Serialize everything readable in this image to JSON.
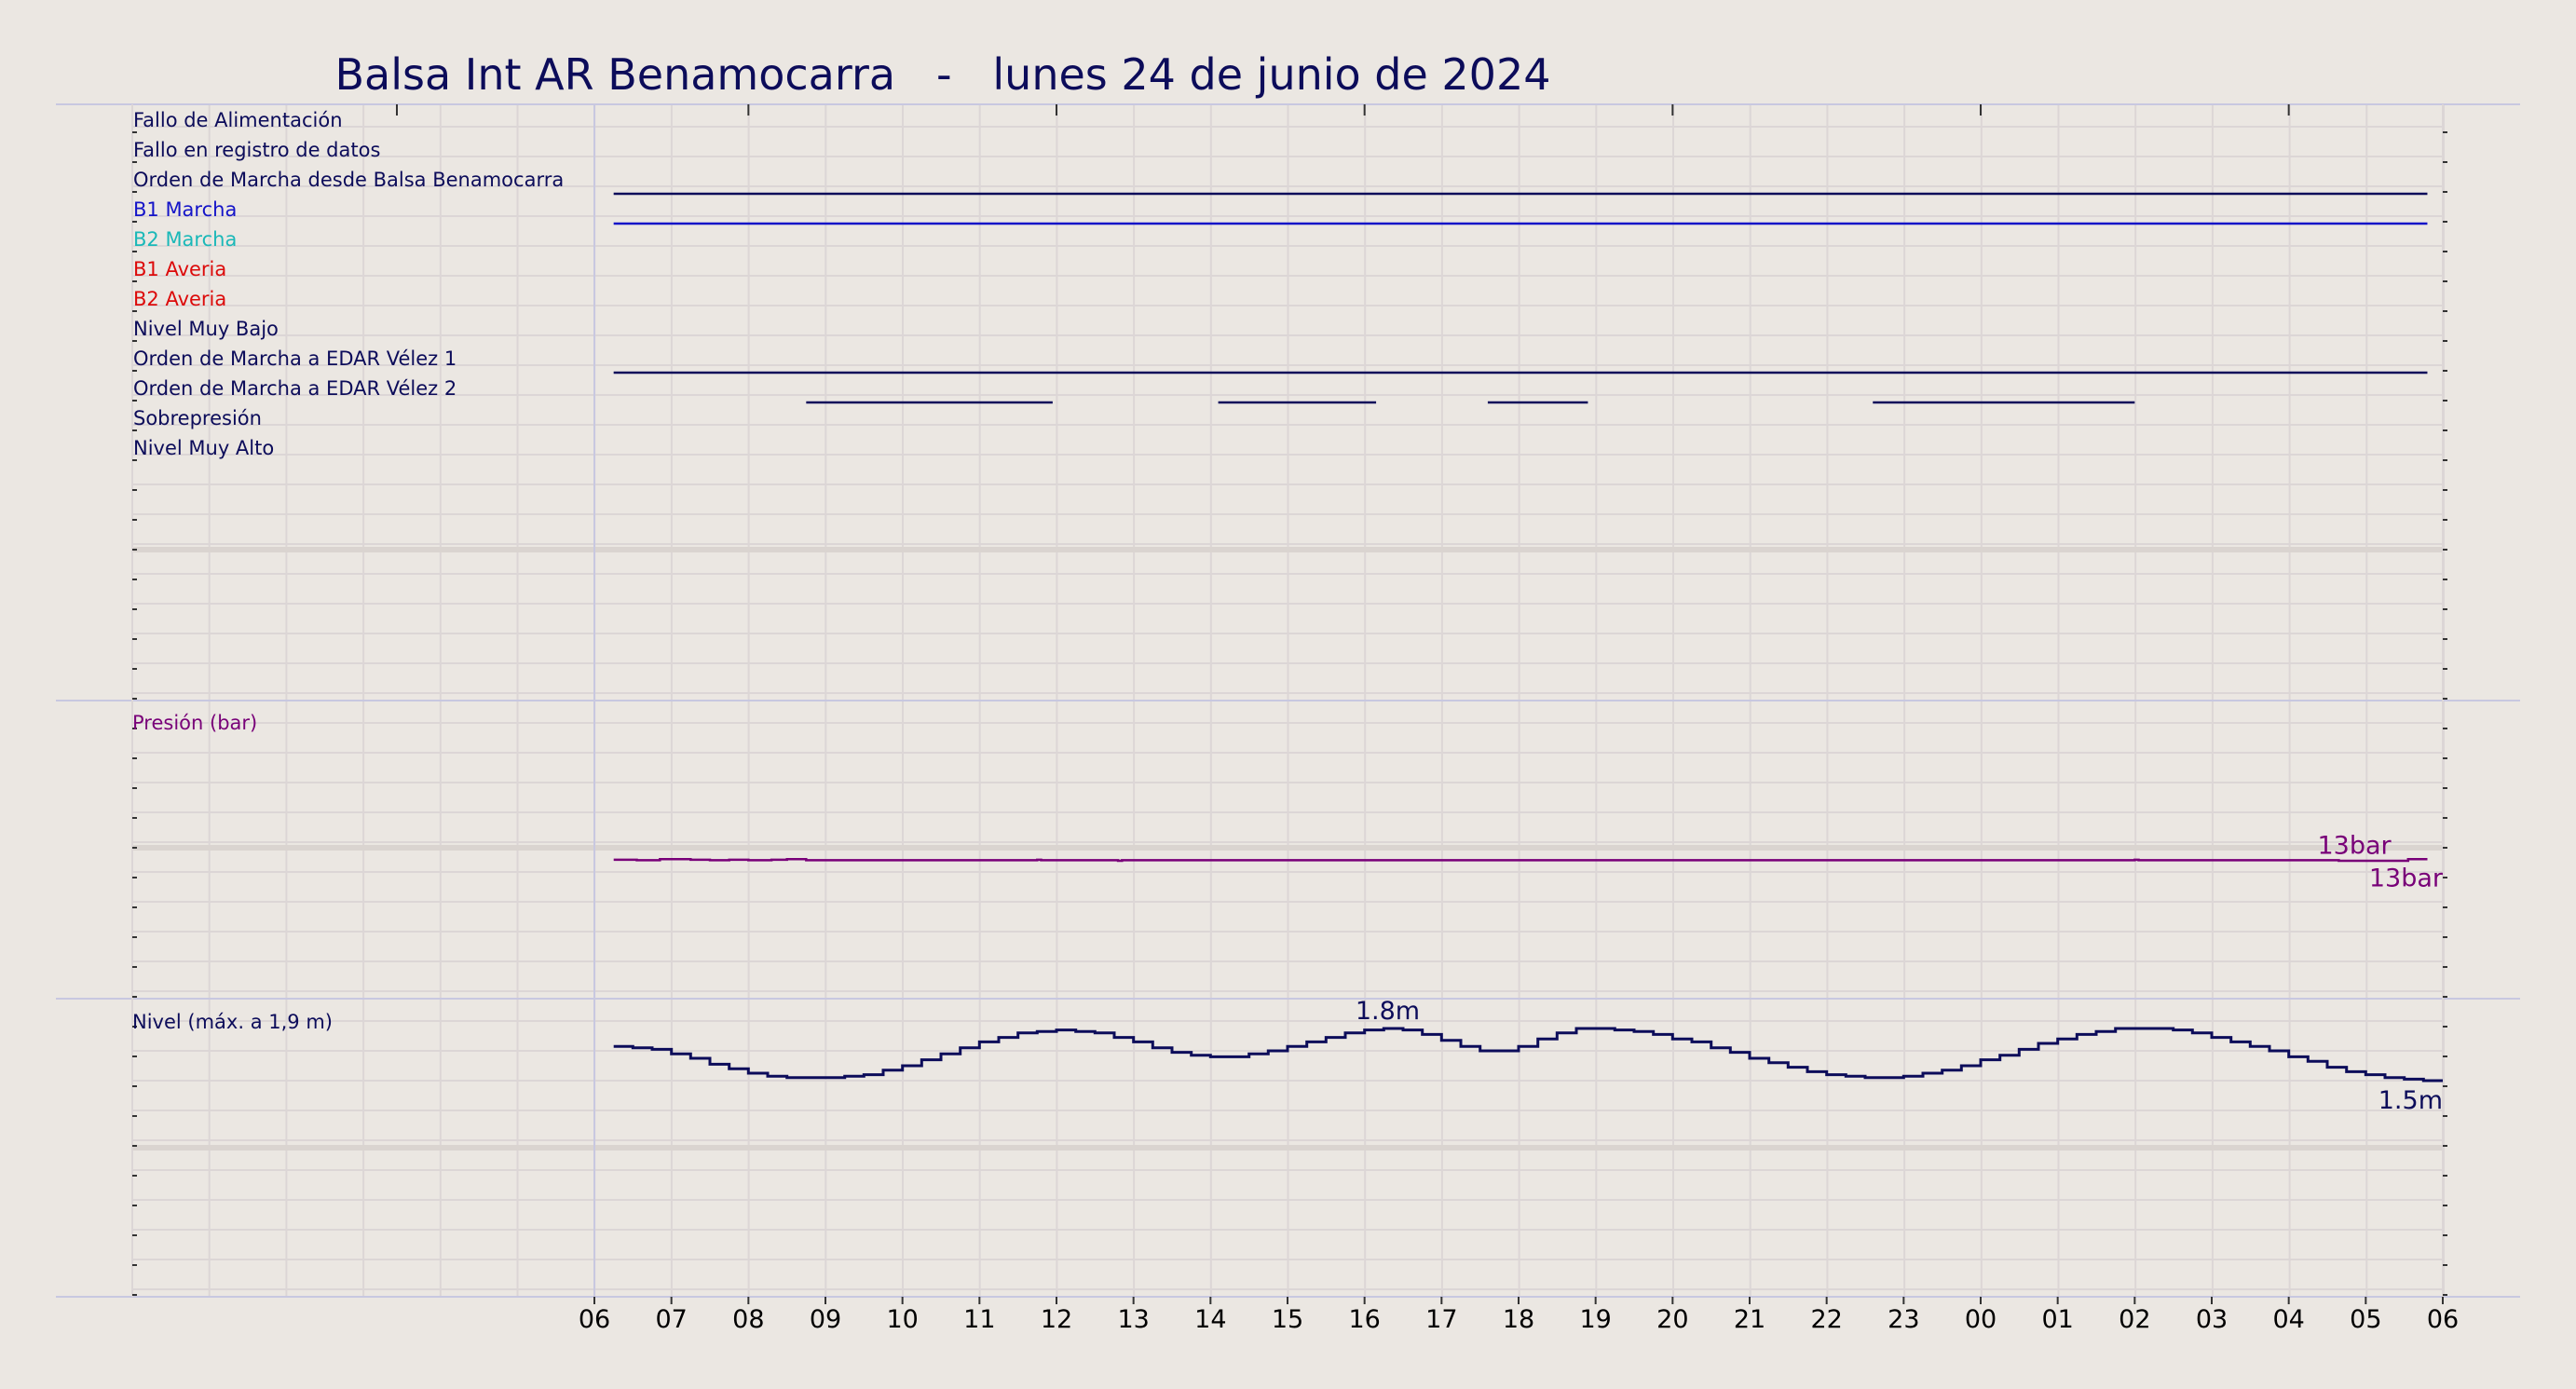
{
  "chart_data": {
    "type": "line",
    "title": "Balsa Int AR Benamocarra   -   lunes 24 de junio de 2024",
    "x_unit": "hour",
    "x_range": [
      "06:00",
      "06:00"
    ],
    "x_tick_labels": [
      "06",
      "07",
      "08",
      "09",
      "10",
      "11",
      "12",
      "13",
      "14",
      "15",
      "16",
      "17",
      "18",
      "19",
      "20",
      "21",
      "22",
      "23",
      "00",
      "01",
      "02",
      "03",
      "04",
      "05",
      "06"
    ],
    "grid": true,
    "colors": {
      "background": "#ebe7e2",
      "navy": "#0c0c5a",
      "blue": "#1414c8",
      "cyan": "#1ab8b8",
      "red": "#dc0a0a",
      "purple": "#780078",
      "grid": "#dcd6d6",
      "axis": "#c8c8e0"
    },
    "panels": {
      "signals": {
        "labels": [
          {
            "text": "Fallo de Alimentación",
            "color": "#0c0c5a"
          },
          {
            "text": "Fallo en registro de datos",
            "color": "#0c0c5a"
          },
          {
            "text": "Orden de Marcha desde Balsa Benamocarra",
            "color": "#0c0c5a"
          },
          {
            "text": "B1 Marcha",
            "color": "#1414c8"
          },
          {
            "text": "B2 Marcha",
            "color": "#1ab8b8"
          },
          {
            "text": "B1 Averia",
            "color": "#dc0a0a"
          },
          {
            "text": "B2 Averia",
            "color": "#dc0a0a"
          },
          {
            "text": "Nivel Muy Bajo",
            "color": "#0c0c5a"
          },
          {
            "text": "Orden de Marcha a EDAR Vélez 1",
            "color": "#0c0c5a"
          },
          {
            "text": "Orden de Marcha a EDAR Vélez 2",
            "color": "#0c0c5a"
          },
          {
            "text": "Sobrepresión",
            "color": "#0c0c5a"
          },
          {
            "text": "Nivel Muy Alto",
            "color": "#0c0c5a"
          }
        ],
        "active_periods": [
          {
            "row": 2,
            "color": "#0c0c5a",
            "intervals": [
              [
                6.25,
                29.8
              ]
            ]
          },
          {
            "row": 3,
            "color": "#1414c8",
            "intervals": [
              [
                6.25,
                29.8
              ]
            ]
          },
          {
            "row": 8,
            "color": "#0c0c5a",
            "intervals": [
              [
                6.25,
                29.8
              ]
            ]
          },
          {
            "row": 9,
            "color": "#0c0c5a",
            "intervals": [
              [
                8.75,
                11.95
              ],
              [
                14.1,
                16.15
              ],
              [
                17.6,
                18.9
              ],
              [
                22.6,
                26.0
              ]
            ]
          }
        ]
      },
      "pressure": {
        "label": "Presión (bar)",
        "color": "#780078",
        "ylim": [
          0,
          28
        ],
        "max_label": "13bar",
        "last_label": "13bar",
        "series": [
          [
            6.25,
            13.05
          ],
          [
            6.55,
            13.0
          ],
          [
            6.85,
            13.1
          ],
          [
            7.25,
            13.05
          ],
          [
            7.5,
            13.0
          ],
          [
            7.75,
            13.05
          ],
          [
            8.0,
            13.0
          ],
          [
            8.3,
            13.05
          ],
          [
            8.5,
            13.1
          ],
          [
            8.75,
            13.0
          ],
          [
            11.75,
            13.05
          ],
          [
            11.8,
            13.0
          ],
          [
            12.8,
            12.95
          ],
          [
            12.85,
            13.0
          ],
          [
            26.0,
            13.05
          ],
          [
            26.05,
            13.0
          ],
          [
            28.6,
            13.0
          ],
          [
            28.65,
            12.95
          ],
          [
            29.5,
            12.95
          ],
          [
            29.55,
            13.1
          ],
          [
            29.8,
            13.1
          ]
        ]
      },
      "level": {
        "label": "Nivel (máx. a 1,9 m)",
        "color": "#0c0c5a",
        "ylim": [
          0,
          2.0
        ],
        "max_label": "1.8m",
        "max_label_at": 16.3,
        "last_label": "1.5m",
        "series": [
          [
            6.25,
            1.68
          ],
          [
            8.55,
            1.47
          ],
          [
            9.0,
            1.47
          ],
          [
            12.0,
            1.79
          ],
          [
            14.1,
            1.61
          ],
          [
            16.3,
            1.8
          ],
          [
            17.6,
            1.65
          ],
          [
            18.9,
            1.8
          ],
          [
            22.65,
            1.47
          ],
          [
            26.0,
            1.8
          ],
          [
            29.8,
            1.45
          ]
        ]
      }
    }
  }
}
